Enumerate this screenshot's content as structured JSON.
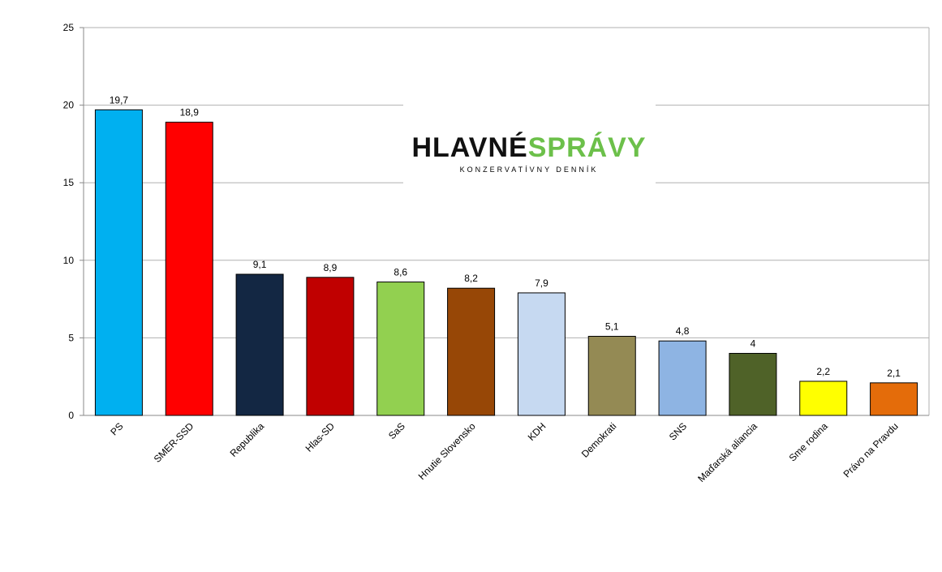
{
  "chart_data": {
    "type": "bar",
    "categories": [
      "PS",
      "SMER-SSD",
      "Republika",
      "Hlas-SD",
      "SaS",
      "Hnutie Slovensko",
      "KDH",
      "Demokrati",
      "SNS",
      "Maďarská aliancia",
      "Sme rodina",
      "Právo na Pravdu"
    ],
    "values": [
      19.7,
      18.9,
      9.1,
      8.9,
      8.6,
      8.2,
      7.9,
      5.1,
      4.8,
      4,
      2.2,
      2.1
    ],
    "value_labels": [
      "19,7",
      "18,9",
      "9,1",
      "8,9",
      "8,6",
      "8,2",
      "7,9",
      "5,1",
      "4,8",
      "4",
      "2,2",
      "2,1"
    ],
    "colors": [
      "#00b0f0",
      "#ff0000",
      "#132743",
      "#c00000",
      "#92d050",
      "#974706",
      "#c6d9f1",
      "#948a54",
      "#8eb4e3",
      "#4f6228",
      "#ffff00",
      "#e46c0a"
    ],
    "ylim": [
      0,
      25
    ],
    "yticks": [
      0,
      5,
      10,
      15,
      20,
      25
    ],
    "grid": true
  },
  "logo": {
    "word1": "HLAVNÉ",
    "word2": "SPRÁVY",
    "tagline": "KONZERVATÍVNY DENNÍK"
  }
}
